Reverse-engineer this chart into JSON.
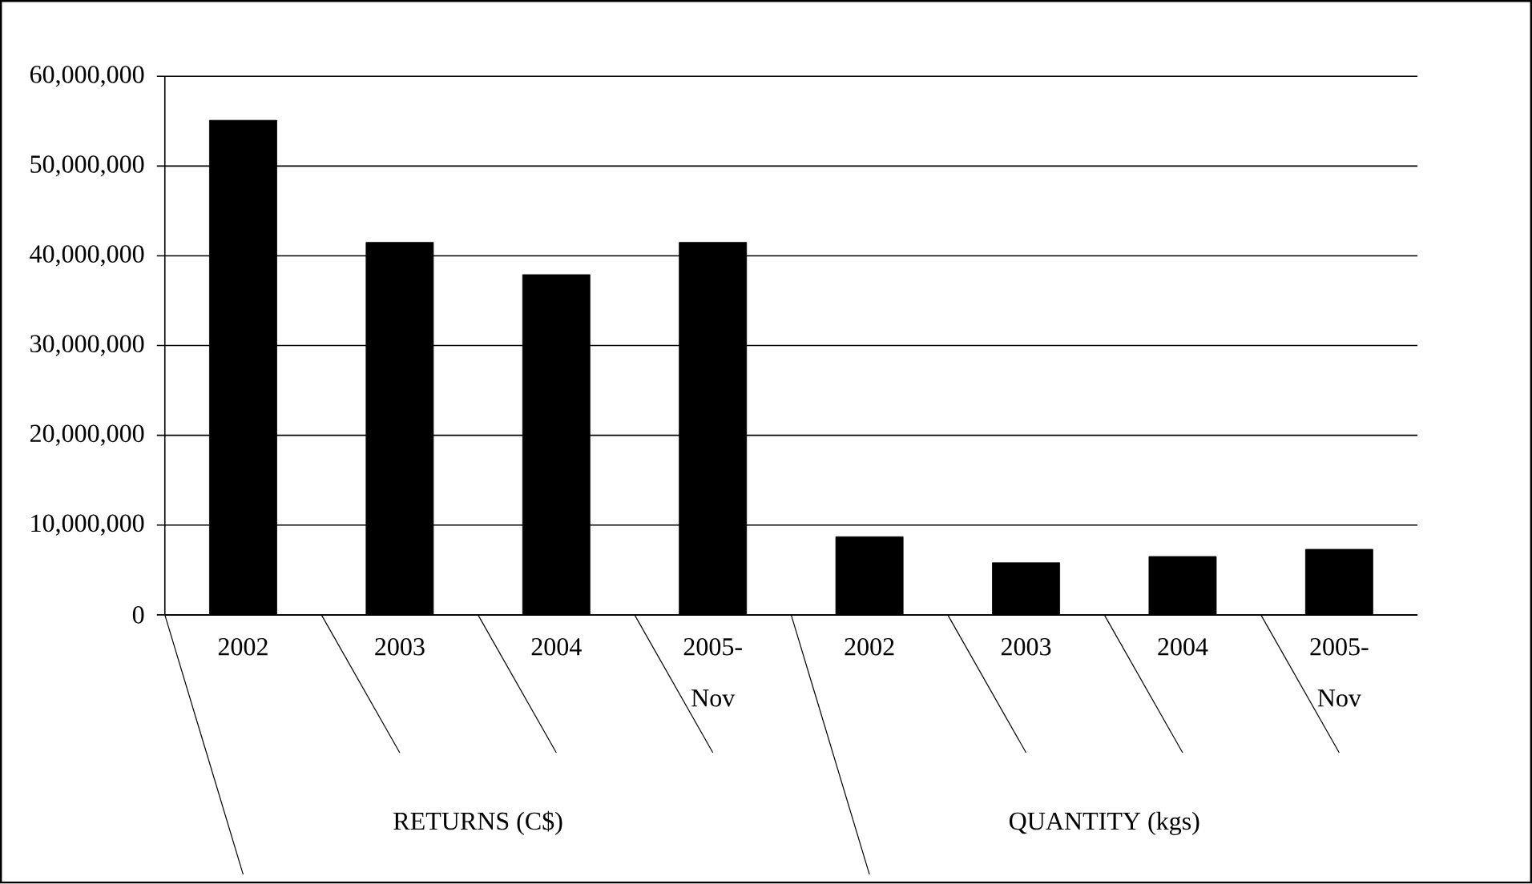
{
  "chart_data": {
    "type": "bar",
    "categories": [
      "2002",
      "2003",
      "2004",
      "2005-Nov",
      "2002",
      "2003",
      "2004",
      "2005-Nov"
    ],
    "values": [
      55100000,
      41500000,
      37900000,
      41500000,
      8700000,
      5800000,
      6500000,
      7300000
    ],
    "color": "#000000",
    "ylim": [
      0,
      60000000
    ],
    "yticks": [
      {
        "value": 0,
        "label": "0"
      },
      {
        "value": 10000000,
        "label": "10,000,000"
      },
      {
        "value": 20000000,
        "label": "20,000,000"
      },
      {
        "value": 30000000,
        "label": "30,000,000"
      },
      {
        "value": 40000000,
        "label": "40,000,000"
      },
      {
        "value": 50000000,
        "label": "50,000,000"
      },
      {
        "value": 60000000,
        "label": "60,000,000"
      }
    ],
    "grid": "y",
    "annotations": [
      "RETURNS (C$)",
      "QUANTITY (kgs)"
    ]
  }
}
